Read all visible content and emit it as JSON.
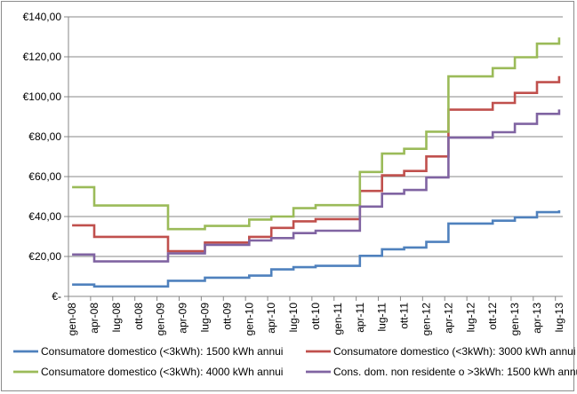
{
  "chart_data": {
    "type": "line",
    "title": "",
    "xlabel": "",
    "ylabel": "",
    "ylim": [
      0,
      140
    ],
    "y_ticks": [
      0,
      20,
      40,
      60,
      80,
      100,
      120,
      140
    ],
    "y_tick_labels": [
      "€-",
      "€20,00",
      "€40,00",
      "€60,00",
      "€80,00",
      "€100,00",
      "€120,00",
      "€140,00"
    ],
    "x_tick_labels": [
      "gen-08",
      "apr-08",
      "lug-08",
      "ott-08",
      "gen-09",
      "apr-09",
      "lug-09",
      "ott-09",
      "gen-10",
      "apr-10",
      "lug-10",
      "ott-10",
      "gen-11",
      "apr-11",
      "lug-11",
      "ott-11",
      "gen-12",
      "apr-12",
      "lug-12",
      "ott-12",
      "gen-13",
      "apr-13",
      "lug-13"
    ],
    "x_months": [
      "gen-08",
      "feb-08",
      "mar-08",
      "apr-08",
      "mag-08",
      "giu-08",
      "lug-08",
      "ago-08",
      "set-08",
      "ott-08",
      "nov-08",
      "dic-08",
      "gen-09",
      "feb-09",
      "mar-09",
      "apr-09",
      "mag-09",
      "giu-09",
      "lug-09",
      "ago-09",
      "set-09",
      "ott-09",
      "nov-09",
      "dic-09",
      "gen-10",
      "feb-10",
      "mar-10",
      "apr-10",
      "mag-10",
      "giu-10",
      "lug-10",
      "ago-10",
      "set-10",
      "ott-10",
      "nov-10",
      "dic-10",
      "gen-11",
      "feb-11",
      "mar-11",
      "apr-11",
      "mag-11",
      "giu-11",
      "lug-11",
      "ago-11",
      "set-11",
      "ott-11",
      "nov-11",
      "dic-11",
      "gen-12",
      "feb-12",
      "mar-12",
      "apr-12",
      "mag-12",
      "giu-12",
      "lug-12",
      "ago-12",
      "set-12",
      "ott-12",
      "nov-12",
      "dic-12",
      "gen-13",
      "feb-13",
      "mar-13",
      "apr-13",
      "mag-13",
      "giu-13",
      "lug-13"
    ],
    "gridlines": "horizontal",
    "legend_position": "bottom",
    "series": [
      {
        "name": "Consumatore domestico (<3kWh): 1500 kWh annui",
        "color": "#4f81bd",
        "values": [
          5.9,
          5.9,
          5.9,
          5.0,
          5.0,
          5.0,
          5.0,
          5.0,
          5.0,
          5.0,
          5.0,
          5.0,
          5.0,
          7.8,
          7.8,
          7.8,
          7.8,
          7.8,
          9.4,
          9.4,
          9.4,
          9.4,
          9.4,
          9.4,
          10.4,
          10.4,
          10.4,
          13.5,
          13.5,
          13.5,
          14.6,
          14.6,
          14.6,
          15.3,
          15.3,
          15.3,
          15.3,
          15.3,
          15.3,
          20.3,
          20.3,
          20.3,
          23.6,
          23.6,
          23.6,
          24.5,
          24.5,
          24.5,
          27.3,
          27.3,
          27.3,
          36.5,
          36.5,
          36.5,
          36.5,
          36.5,
          36.5,
          37.9,
          37.9,
          37.9,
          39.6,
          39.6,
          39.6,
          42.2,
          42.2,
          42.2,
          43.1
        ]
      },
      {
        "name": "Consumatore domestico (<3kWh): 3000 kWh annui",
        "color": "#c0504d",
        "values": [
          35.6,
          35.6,
          35.6,
          29.8,
          29.8,
          29.8,
          29.8,
          29.8,
          29.8,
          29.8,
          29.8,
          29.8,
          29.8,
          22.6,
          22.6,
          22.6,
          22.6,
          22.6,
          27.0,
          27.0,
          27.0,
          27.0,
          27.0,
          27.0,
          29.8,
          29.8,
          29.8,
          34.3,
          34.3,
          34.3,
          37.6,
          37.6,
          37.6,
          38.7,
          38.7,
          38.7,
          38.7,
          38.7,
          38.7,
          52.8,
          52.8,
          52.8,
          60.6,
          60.6,
          60.6,
          62.8,
          62.8,
          62.8,
          70.1,
          70.1,
          70.1,
          93.5,
          93.5,
          93.5,
          93.5,
          93.5,
          93.5,
          96.9,
          96.9,
          96.9,
          101.9,
          101.9,
          101.9,
          107.3,
          107.3,
          107.3,
          110.3
        ]
      },
      {
        "name": "Consumatore domestico (<3kWh): 4000 kWh annui",
        "color": "#9bbb59",
        "values": [
          54.7,
          54.7,
          54.7,
          45.5,
          45.5,
          45.5,
          45.5,
          45.5,
          45.5,
          45.5,
          45.5,
          45.5,
          45.5,
          33.7,
          33.7,
          33.7,
          33.7,
          33.7,
          35.3,
          35.3,
          35.3,
          35.3,
          35.3,
          35.3,
          38.5,
          38.5,
          38.5,
          40.0,
          40.0,
          40.0,
          44.2,
          44.2,
          44.2,
          45.7,
          45.7,
          45.7,
          45.7,
          45.7,
          45.7,
          62.3,
          62.3,
          62.3,
          71.5,
          71.5,
          71.5,
          73.9,
          73.9,
          73.9,
          82.5,
          82.5,
          82.5,
          110.2,
          110.2,
          110.2,
          110.2,
          110.2,
          110.2,
          114.3,
          114.3,
          114.3,
          119.8,
          119.8,
          119.8,
          126.6,
          126.6,
          126.6,
          129.7
        ]
      },
      {
        "name": "Cons. dom. non residente o >3kWh: 1500 kWh annui",
        "color": "#8064a2",
        "values": [
          21.0,
          21.0,
          21.0,
          17.5,
          17.5,
          17.5,
          17.5,
          17.5,
          17.5,
          17.5,
          17.5,
          17.5,
          17.5,
          21.5,
          21.5,
          21.5,
          21.5,
          21.5,
          25.8,
          25.8,
          25.8,
          25.8,
          25.8,
          25.8,
          28.0,
          28.0,
          28.0,
          29.2,
          29.2,
          29.2,
          31.7,
          31.7,
          31.7,
          32.9,
          32.9,
          32.9,
          32.9,
          32.9,
          32.9,
          45.0,
          45.0,
          45.0,
          51.4,
          51.4,
          51.4,
          53.3,
          53.3,
          53.3,
          59.6,
          59.6,
          59.6,
          79.5,
          79.5,
          79.5,
          79.5,
          79.5,
          79.5,
          82.2,
          82.2,
          82.2,
          86.4,
          86.4,
          86.4,
          91.4,
          91.4,
          91.4,
          93.6
        ]
      }
    ]
  }
}
